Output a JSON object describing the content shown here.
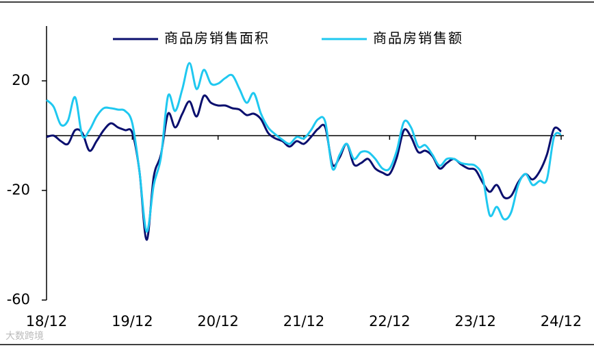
{
  "chart_data": {
    "type": "line",
    "categories": [
      "18/12",
      null,
      null,
      null,
      null,
      null,
      null,
      null,
      null,
      null,
      null,
      null,
      "19/12",
      null,
      null,
      null,
      null,
      null,
      null,
      null,
      null,
      null,
      null,
      null,
      "20/12",
      null,
      null,
      null,
      null,
      null,
      null,
      null,
      null,
      null,
      null,
      null,
      "21/12",
      null,
      null,
      null,
      null,
      null,
      null,
      null,
      null,
      null,
      null,
      null,
      "22/12",
      null,
      null,
      null,
      null,
      null,
      null,
      null,
      null,
      null,
      null,
      null,
      "23/12",
      null,
      null,
      null,
      null,
      null,
      null,
      null,
      null,
      null,
      null,
      null,
      "24/12"
    ],
    "series": [
      {
        "name": "商品房销售面积",
        "color": "#0a0f6e",
        "values": [
          -0.5,
          0,
          -2,
          -3,
          2,
          1,
          -5.5,
          -2,
          2,
          4.5,
          3,
          2,
          1,
          -13,
          -38,
          -15,
          -7,
          8,
          3,
          8,
          12.5,
          7,
          14.5,
          12,
          11,
          11,
          10,
          9.5,
          7.5,
          8,
          6,
          1,
          -1,
          -2,
          -4,
          -2,
          -3,
          -0.5,
          2.5,
          3,
          -10.5,
          -8,
          -3,
          -10.5,
          -10,
          -8.5,
          -12,
          -13.5,
          -14,
          -8,
          2,
          -0.5,
          -6,
          -5.5,
          -7.5,
          -12,
          -10,
          -8.5,
          -10.5,
          -12,
          -12.5,
          -17,
          -20.5,
          -18,
          -22.5,
          -22,
          -17,
          -14,
          -16,
          -13,
          -7,
          2.5,
          1.5
        ]
      },
      {
        "name": "商品房销售额",
        "color": "#1fc8f0",
        "values": [
          13,
          10.5,
          4,
          5.5,
          14,
          0,
          2,
          7,
          10,
          10,
          9.5,
          9,
          4.5,
          -13,
          -35,
          -18,
          -8,
          14.5,
          9,
          17,
          26.5,
          17,
          24,
          19,
          19,
          21,
          22,
          17,
          12,
          15.5,
          8,
          3,
          0.5,
          -1.5,
          -3,
          -0.5,
          -1,
          2,
          6,
          5,
          -12,
          -7,
          -3,
          -8.5,
          -6,
          -6,
          -8.5,
          -12,
          -12,
          -5.5,
          5,
          3,
          -4,
          -3.5,
          -7,
          -11,
          -8.5,
          -8.5,
          -10,
          -10.5,
          -11,
          -15,
          -29,
          -26,
          -30.5,
          -28,
          -18,
          -14,
          -18,
          -16.5,
          -16,
          -0.5,
          0.5
        ]
      }
    ],
    "ylim": [
      -60,
      40
    ],
    "yticks": [
      -60,
      -20,
      20
    ],
    "legend": "top"
  },
  "watermark": "大数跨境"
}
